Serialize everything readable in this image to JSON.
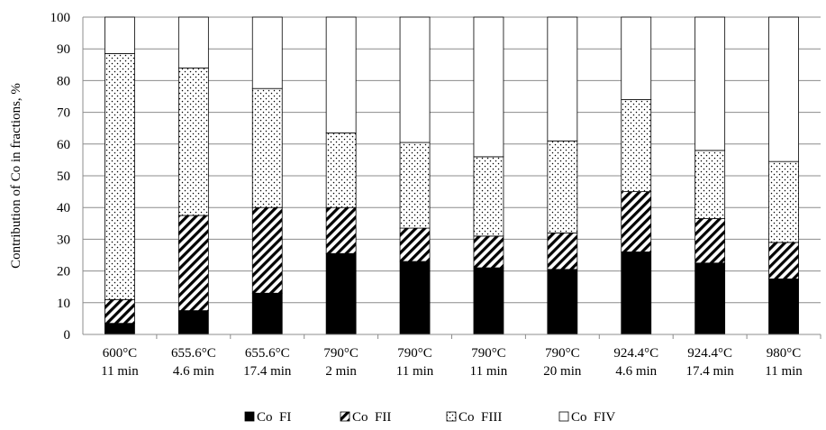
{
  "chart_data": {
    "type": "bar",
    "stacked": true,
    "ylabel": "Contribution of Co in fractions, %",
    "xlabel": "",
    "ylim": [
      0,
      100
    ],
    "yticks": [
      0,
      10,
      20,
      30,
      40,
      50,
      60,
      70,
      80,
      90,
      100
    ],
    "grid": true,
    "legend_position": "bottom",
    "categories": [
      [
        "600°C",
        "11 min"
      ],
      [
        "655.6°C",
        "4.6 min"
      ],
      [
        "655.6°C",
        "17.4 min"
      ],
      [
        "790°C",
        "2 min"
      ],
      [
        "790°C",
        "11 min"
      ],
      [
        "790°C",
        "11 min"
      ],
      [
        "790°C",
        "20 min"
      ],
      [
        "924.4°C",
        "4.6 min"
      ],
      [
        "924.4°C",
        "17.4 min"
      ],
      [
        "980°C",
        "11 min"
      ]
    ],
    "series": [
      {
        "name": "Co  FI",
        "pattern": "solid",
        "values": [
          3.5,
          7.5,
          13,
          25.5,
          23,
          21,
          20.5,
          26,
          22.5,
          17.5
        ]
      },
      {
        "name": "Co  FII",
        "pattern": "diagonal",
        "values": [
          7.5,
          30,
          27,
          14.5,
          10.5,
          10,
          11.5,
          19,
          14,
          11.5
        ]
      },
      {
        "name": "Co  FIII",
        "pattern": "dotted",
        "values": [
          77.5,
          46.5,
          37.5,
          23.5,
          27,
          25,
          29,
          29,
          21.5,
          25.5
        ]
      },
      {
        "name": "Co  FIV",
        "pattern": "empty",
        "values": [
          11.5,
          16,
          22.5,
          36.5,
          39.5,
          44,
          39,
          26,
          42,
          45.5
        ]
      }
    ],
    "colors": {
      "stroke": "#000000",
      "grid": "#8c8c8c",
      "fill": "#ffffff"
    }
  }
}
